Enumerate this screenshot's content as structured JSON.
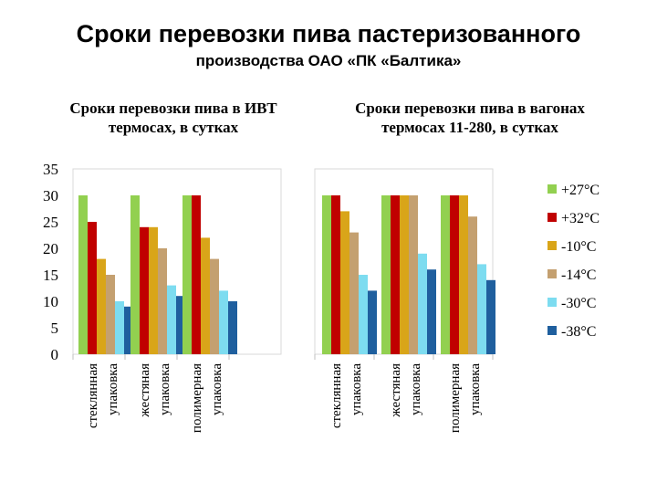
{
  "title": "Сроки перевозки пива пастеризованного",
  "subtitle": "производства ОАО «ПК «Балтика»",
  "chart_data": [
    {
      "type": "bar",
      "title": "Сроки перевозки пива в ИВТ термосах, в сутках",
      "categories": [
        "стеклянная упаковка",
        "жестяная упаковка",
        "полимерная упаковка"
      ],
      "series": [
        {
          "name": "+27°C",
          "values": [
            30,
            30,
            30
          ]
        },
        {
          "name": "+32°C",
          "values": [
            25,
            24,
            30
          ]
        },
        {
          "name": "-10°C",
          "values": [
            18,
            24,
            22
          ]
        },
        {
          "name": "-14°C",
          "values": [
            15,
            20,
            18
          ]
        },
        {
          "name": "-30°C",
          "values": [
            10,
            13,
            12
          ]
        },
        {
          "name": "-38°C",
          "values": [
            9,
            11,
            10
          ]
        }
      ],
      "ylim": [
        0,
        35
      ],
      "yticks": [
        "0",
        "5",
        "10",
        "15",
        "20",
        "25",
        "30",
        "35"
      ],
      "xlabel": "",
      "ylabel": ""
    },
    {
      "type": "bar",
      "title": "Сроки перевозки пива в вагонах термосах 11-280, в сутках",
      "categories": [
        "стеклянная упаковка",
        "жестяная упаковка",
        "полимерная упаковка"
      ],
      "series": [
        {
          "name": "+27°C",
          "values": [
            30,
            30,
            30
          ]
        },
        {
          "name": "+32°C",
          "values": [
            30,
            30,
            30
          ]
        },
        {
          "name": "-10°C",
          "values": [
            27,
            30,
            30
          ]
        },
        {
          "name": "-14°C",
          "values": [
            23,
            30,
            26
          ]
        },
        {
          "name": "-30°C",
          "values": [
            15,
            19,
            17
          ]
        },
        {
          "name": "-38°C",
          "values": [
            12,
            16,
            14
          ]
        }
      ],
      "ylim": [
        0,
        35
      ],
      "xlabel": "",
      "ylabel": ""
    }
  ],
  "colors": [
    "#92d050",
    "#c00000",
    "#d9a519",
    "#c4a070",
    "#7ddcf0",
    "#1f5f9e"
  ],
  "legend": {
    "position": "right",
    "entries": [
      "+27°C",
      "+32°C",
      "-10°C",
      "-14°C",
      "-30°C",
      "-38°C"
    ]
  }
}
